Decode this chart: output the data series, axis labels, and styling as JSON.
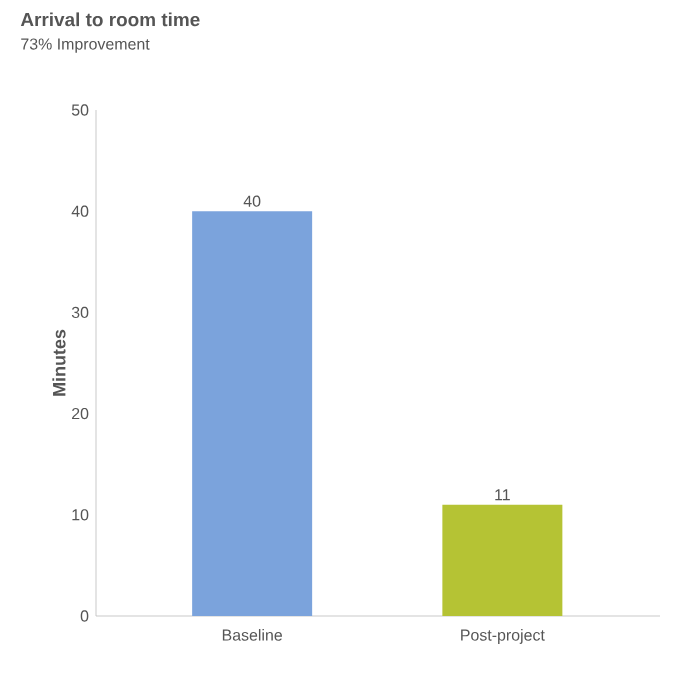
{
  "chart_data": {
    "type": "bar",
    "title": "Arrival to room time",
    "subtitle": "73% Improvement",
    "ylabel": "Minutes",
    "categories": [
      "Baseline",
      "Post-project"
    ],
    "values": [
      40,
      11
    ],
    "colors": [
      "#7ba3dc",
      "#b5c334"
    ],
    "ylim": [
      0,
      50
    ],
    "yticks": [
      0,
      10,
      20,
      30,
      40,
      50
    ],
    "grid": false,
    "data_labels": true
  }
}
